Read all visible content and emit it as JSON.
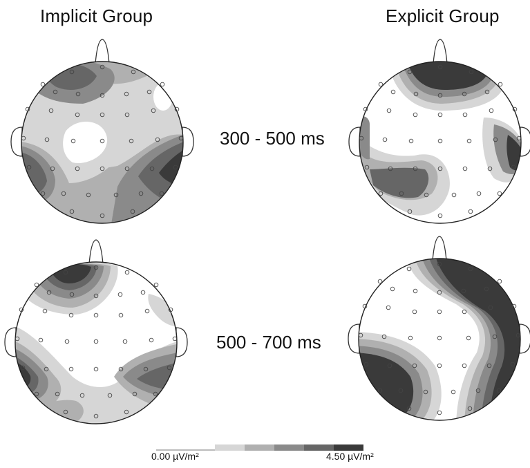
{
  "titles": {
    "left": "Implicit Group",
    "right": "Explicit Group"
  },
  "time_windows": [
    "300 - 500 ms",
    "500 - 700 ms"
  ],
  "scale": {
    "min_label": "0.00 µV/m²",
    "max_label": "4.50 µV/m²",
    "min_value": 0.0,
    "max_value": 4.5,
    "unit": "µV/m²",
    "levels": 6,
    "colors": [
      "#ffffff",
      "#d6d6d6",
      "#b0b0b0",
      "#8a8a8a",
      "#666666",
      "#3a3a3a"
    ]
  },
  "maps": [
    {
      "group": "Implicit Group",
      "window": "300 - 500 ms"
    },
    {
      "group": "Explicit Group",
      "window": "300 - 500 ms"
    },
    {
      "group": "Implicit Group",
      "window": "500 - 700 ms"
    },
    {
      "group": "Explicit Group",
      "window": "500 - 700 ms"
    }
  ]
}
